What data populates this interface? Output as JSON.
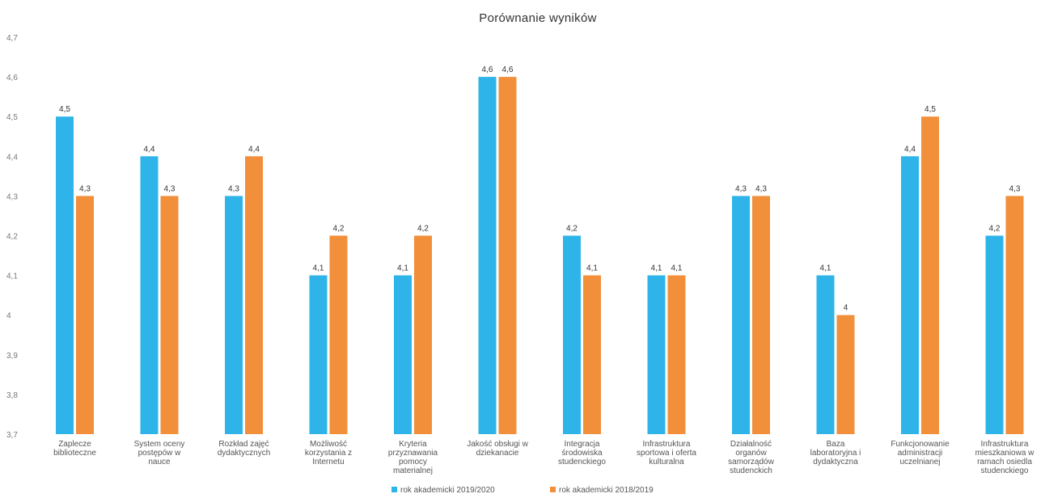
{
  "chart_data": {
    "type": "bar",
    "title": "Porównanie wyników",
    "xlabel": "",
    "ylabel": "",
    "ylim": [
      3.7,
      4.7
    ],
    "yticks": [
      "4,7",
      "4,6",
      "4,5",
      "4,4",
      "4,3",
      "4,2",
      "4,1",
      "4",
      "3,9",
      "3,8",
      "3,7"
    ],
    "grid": false,
    "legend_position": "bottom",
    "categories": [
      [
        "Zaplecze",
        "biblioteczne"
      ],
      [
        "System oceny",
        "postępów w",
        "nauce"
      ],
      [
        "Rozkład zajęć",
        "dydaktycznych"
      ],
      [
        "Możliwość",
        "korzystania z",
        "Internetu"
      ],
      [
        "Kryteria",
        "przyznawania",
        "pomocy",
        "materialnej"
      ],
      [
        "Jakość obsługi w",
        "dziekanacie"
      ],
      [
        "Integracja",
        "środowiska",
        "studenckiego"
      ],
      [
        "Infrastruktura",
        "sportowa i oferta",
        "kulturalna"
      ],
      [
        "Działalność",
        "organów",
        "samorządów",
        "studenckich"
      ],
      [
        "Baza",
        "laboratoryjna i",
        "dydaktyczna"
      ],
      [
        "Funkcjonowanie",
        "administracji",
        "uczelnianej"
      ],
      [
        "Infrastruktura",
        "mieszkaniowa w",
        "ramach osiedla",
        "studenckiego"
      ]
    ],
    "series": [
      {
        "name": "rok akademicki 2019/2020",
        "color": "#2eb4e8",
        "values": [
          4.5,
          4.4,
          4.3,
          4.1,
          4.1,
          4.6,
          4.2,
          4.1,
          4.3,
          4.1,
          4.4,
          4.2
        ],
        "labels": [
          "4,5",
          "4,4",
          "4,3",
          "4,1",
          "4,1",
          "4,6",
          "4,2",
          "4,1",
          "4,3",
          "4,1",
          "4,4",
          "4,2"
        ]
      },
      {
        "name": "rok akademicki 2018/2019",
        "color": "#f28f3b",
        "values": [
          4.3,
          4.3,
          4.4,
          4.2,
          4.2,
          4.6,
          4.1,
          4.1,
          4.3,
          4.0,
          4.5,
          4.3
        ],
        "labels": [
          "4,3",
          "4,3",
          "4,4",
          "4,2",
          "4,2",
          "4,6",
          "4,1",
          "4,1",
          "4,3",
          "4",
          "4,5",
          "4,3"
        ]
      }
    ]
  }
}
